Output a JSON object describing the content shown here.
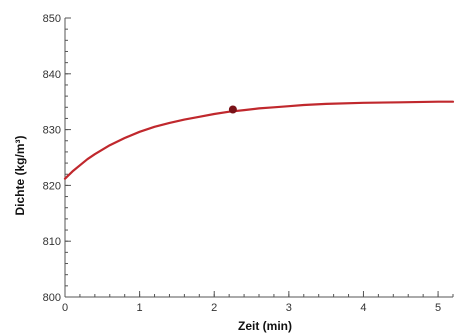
{
  "chart_data": {
    "type": "line",
    "xlabel": "Zeit (min)",
    "ylabel": "Dichte (kg/m³)",
    "xlim": [
      0,
      5.2
    ],
    "ylim": [
      800,
      850
    ],
    "x_ticks": [
      0,
      1,
      2,
      3,
      4,
      5
    ],
    "x_tick_labels": [
      "0",
      "1",
      "2",
      "3",
      "4",
      "5"
    ],
    "y_ticks": [
      800,
      810,
      820,
      830,
      840,
      850
    ],
    "y_tick_labels": [
      "800",
      "810",
      "820",
      "830",
      "840",
      "850"
    ],
    "x_minor_step": 0.2,
    "y_minor_step": 2,
    "grid": false,
    "series": [
      {
        "color": "#c0282d",
        "x": [
          0,
          0.1,
          0.2,
          0.3,
          0.4,
          0.5,
          0.6,
          0.8,
          1.0,
          1.2,
          1.4,
          1.6,
          1.8,
          2.0,
          2.2,
          2.4,
          2.6,
          2.8,
          3.0,
          3.2,
          3.5,
          4.0,
          4.5,
          5.0,
          5.2
        ],
        "y": [
          821.2,
          822.5,
          823.6,
          824.7,
          825.6,
          826.4,
          827.2,
          828.5,
          829.6,
          830.5,
          831.2,
          831.8,
          832.3,
          832.8,
          833.2,
          833.5,
          833.8,
          834.0,
          834.2,
          834.4,
          834.6,
          834.8,
          834.9,
          835.0,
          835.0
        ]
      }
    ],
    "marker": {
      "x": 2.25,
      "y": 833.6,
      "color": "#7a1218"
    }
  }
}
